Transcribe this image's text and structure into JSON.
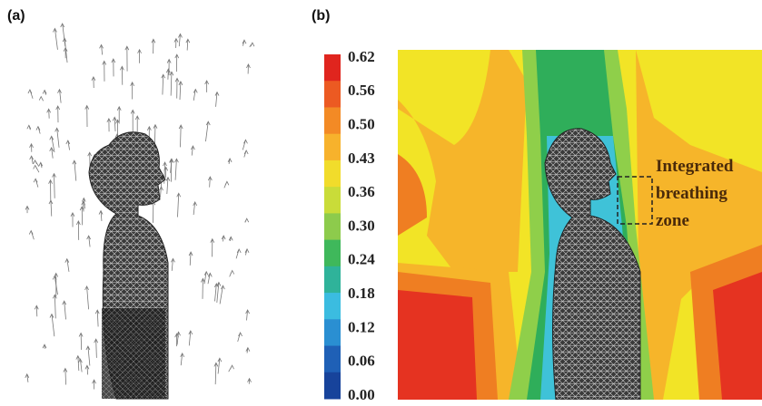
{
  "panels": [
    {
      "label": "(a)"
    },
    {
      "label": "(b)",
      "colorbar": {
        "ticks": [
          "0.62",
          "0.56",
          "0.50",
          "0.43",
          "0.36",
          "0.30",
          "0.24",
          "0.18",
          "0.12",
          "0.06",
          "0.00"
        ]
      },
      "annotation": [
        "Integrated",
        "breathing",
        "zone"
      ]
    }
  ]
}
